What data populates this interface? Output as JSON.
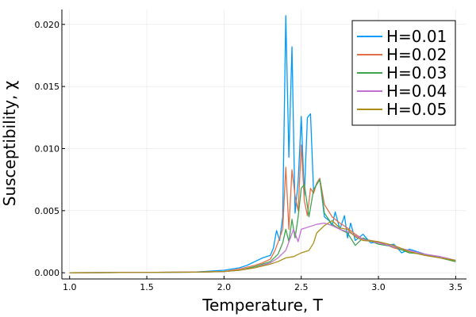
{
  "chart_data": {
    "type": "line",
    "xlabel": "Temperature, T",
    "ylabel": "Susceptibility, χ",
    "xlim": [
      0.95,
      3.57
    ],
    "ylim": [
      -0.0005,
      0.0212
    ],
    "grid": true,
    "legend_position": "top-right",
    "x_ticks": [
      1.0,
      1.5,
      2.0,
      2.5,
      3.0,
      3.5
    ],
    "x_tick_labels": [
      "1.0",
      "1.5",
      "2.0",
      "2.5",
      "3.0",
      "3.5"
    ],
    "y_ticks": [
      0.0,
      0.005,
      0.01,
      0.015,
      0.02
    ],
    "y_tick_labels": [
      "0.000",
      "0.005",
      "0.010",
      "0.015",
      "0.020"
    ],
    "series": [
      {
        "name": "H=0.01",
        "color": "#009AFA",
        "x": [
          1.0,
          1.8,
          2.0,
          2.05,
          2.1,
          2.15,
          2.2,
          2.25,
          2.3,
          2.32,
          2.34,
          2.36,
          2.38,
          2.4,
          2.42,
          2.44,
          2.46,
          2.48,
          2.5,
          2.52,
          2.54,
          2.56,
          2.58,
          2.6,
          2.62,
          2.65,
          2.68,
          2.7,
          2.72,
          2.75,
          2.78,
          2.8,
          2.82,
          2.85,
          2.9,
          2.95,
          3.0,
          3.05,
          3.1,
          3.15,
          3.2,
          3.3,
          3.4,
          3.5
        ],
        "values": [
          0.0,
          5e-05,
          0.0002,
          0.0003,
          0.0004,
          0.0006,
          0.0009,
          0.0012,
          0.0014,
          0.002,
          0.0034,
          0.0026,
          0.0045,
          0.0207,
          0.0093,
          0.0182,
          0.0048,
          0.0073,
          0.0126,
          0.0062,
          0.0125,
          0.0128,
          0.0065,
          0.0072,
          0.0076,
          0.0045,
          0.0042,
          0.0038,
          0.0049,
          0.0035,
          0.0046,
          0.0028,
          0.004,
          0.0026,
          0.0031,
          0.0024,
          0.0025,
          0.0022,
          0.0023,
          0.0016,
          0.0019,
          0.0015,
          0.0012,
          0.001
        ]
      },
      {
        "name": "H=0.02",
        "color": "#E36F47",
        "x": [
          1.0,
          1.8,
          2.0,
          2.1,
          2.2,
          2.25,
          2.3,
          2.33,
          2.36,
          2.38,
          2.4,
          2.42,
          2.44,
          2.46,
          2.48,
          2.5,
          2.52,
          2.54,
          2.56,
          2.58,
          2.6,
          2.62,
          2.65,
          2.7,
          2.75,
          2.8,
          2.85,
          2.9,
          3.0,
          3.1,
          3.2,
          3.3,
          3.4,
          3.5
        ],
        "values": [
          0.0,
          5e-05,
          0.0001,
          0.0003,
          0.0006,
          0.0008,
          0.0011,
          0.0018,
          0.0028,
          0.0035,
          0.0085,
          0.0035,
          0.0083,
          0.0062,
          0.005,
          0.0103,
          0.0058,
          0.0046,
          0.0068,
          0.0064,
          0.0072,
          0.0076,
          0.0055,
          0.0045,
          0.004,
          0.0036,
          0.0031,
          0.0027,
          0.0025,
          0.002,
          0.0017,
          0.0014,
          0.0012,
          0.0009
        ]
      },
      {
        "name": "H=0.03",
        "color": "#3EA44E",
        "x": [
          1.0,
          1.8,
          2.0,
          2.1,
          2.2,
          2.25,
          2.3,
          2.35,
          2.38,
          2.4,
          2.42,
          2.44,
          2.46,
          2.48,
          2.5,
          2.52,
          2.55,
          2.58,
          2.6,
          2.62,
          2.65,
          2.7,
          2.75,
          2.8,
          2.85,
          2.9,
          3.0,
          3.1,
          3.2,
          3.3,
          3.4,
          3.5
        ],
        "values": [
          0.0,
          5e-05,
          0.0001,
          0.0002,
          0.0005,
          0.0007,
          0.0009,
          0.0015,
          0.0024,
          0.0035,
          0.0025,
          0.0043,
          0.0028,
          0.0045,
          0.0068,
          0.0071,
          0.0045,
          0.0067,
          0.0071,
          0.0075,
          0.0048,
          0.0039,
          0.0035,
          0.0032,
          0.0022,
          0.0028,
          0.0023,
          0.0021,
          0.0016,
          0.0015,
          0.0012,
          0.0009
        ]
      },
      {
        "name": "H=0.04",
        "color": "#C271D2",
        "x": [
          1.0,
          1.8,
          2.0,
          2.1,
          2.2,
          2.3,
          2.35,
          2.4,
          2.45,
          2.48,
          2.5,
          2.55,
          2.6,
          2.65,
          2.7,
          2.75,
          2.8,
          2.85,
          2.9,
          3.0,
          3.1,
          3.2,
          3.3,
          3.4,
          3.5
        ],
        "values": [
          0.0,
          5e-05,
          0.0001,
          0.0002,
          0.0004,
          0.0008,
          0.0012,
          0.0018,
          0.0035,
          0.0025,
          0.0035,
          0.0037,
          0.0039,
          0.004,
          0.0038,
          0.0035,
          0.0033,
          0.003,
          0.0027,
          0.0024,
          0.0021,
          0.0018,
          0.0015,
          0.0013,
          0.001
        ]
      },
      {
        "name": "H=0.05",
        "color": "#AC8D18",
        "x": [
          1.0,
          1.8,
          2.0,
          2.1,
          2.2,
          2.3,
          2.35,
          2.4,
          2.45,
          2.5,
          2.55,
          2.58,
          2.6,
          2.65,
          2.7,
          2.75,
          2.8,
          2.85,
          2.9,
          3.0,
          3.1,
          3.2,
          3.3,
          3.4,
          3.5
        ],
        "values": [
          0.0,
          5e-05,
          0.0001,
          0.0002,
          0.0004,
          0.0007,
          0.0009,
          0.0012,
          0.0013,
          0.0016,
          0.0018,
          0.0024,
          0.0032,
          0.0038,
          0.0042,
          0.0036,
          0.0035,
          0.0029,
          0.0026,
          0.0025,
          0.0022,
          0.0017,
          0.0014,
          0.0012,
          0.001
        ]
      }
    ]
  }
}
